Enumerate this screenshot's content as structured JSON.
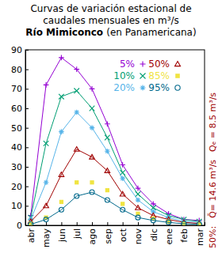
{
  "chart_data": {
    "type": "line",
    "title": "Curvas de variación estacional de caudales mensuales en m³/s",
    "subtitle": "Río Mimiconco (en Panamericana)",
    "categories": [
      "abr",
      "may",
      "jun",
      "jul",
      "ago",
      "sep",
      "oct",
      "nov",
      "dic",
      "ene",
      "feb",
      "mar"
    ],
    "series": [
      {
        "name": "5%",
        "color": "#9400d3",
        "marker": "plus",
        "line_style": "solid",
        "values": [
          5,
          72,
          86,
          80,
          70,
          52,
          31,
          19,
          11,
          6,
          3,
          2.5
        ]
      },
      {
        "name": "10%",
        "color": "#009e73",
        "marker": "cross",
        "line_style": "solid",
        "values": [
          4,
          42,
          66,
          69,
          60,
          45,
          27,
          16,
          9,
          5,
          3,
          2
        ]
      },
      {
        "name": "20%",
        "color": "#56b4e9",
        "marker": "asterisk",
        "line_style": "solid",
        "values": [
          3,
          22,
          48,
          58,
          50,
          38,
          24,
          13,
          7,
          4,
          2,
          1.5
        ]
      },
      {
        "name": "50%",
        "color": "#a00000",
        "marker": "triangle",
        "line_style": "solid",
        "values": [
          2,
          10,
          26,
          39,
          35,
          28,
          16,
          9,
          5,
          3,
          1.5,
          1
        ]
      },
      {
        "name": "85%",
        "color": "#f0e442",
        "marker": "square",
        "line_style": "none",
        "values": [
          1,
          4,
          12,
          22,
          22,
          18,
          11,
          6,
          3.5,
          2,
          1,
          0.7
        ]
      },
      {
        "name": "95%",
        "color": "#00688b",
        "marker": "circle",
        "line_style": "solid",
        "values": [
          0.5,
          3,
          8,
          15,
          17,
          13,
          8,
          4,
          2.5,
          1.5,
          0.8,
          0.5
        ]
      }
    ],
    "ylim": [
      0,
      90
    ],
    "yticks": [
      0,
      10,
      20,
      30,
      40,
      50,
      60,
      70,
      80,
      90
    ],
    "grid": false,
    "legend": "top-right",
    "annotations": [
      "50%:",
      "Q̄= 14.6 m³/s",
      "Qₑ = 8.5 m³/s"
    ]
  }
}
